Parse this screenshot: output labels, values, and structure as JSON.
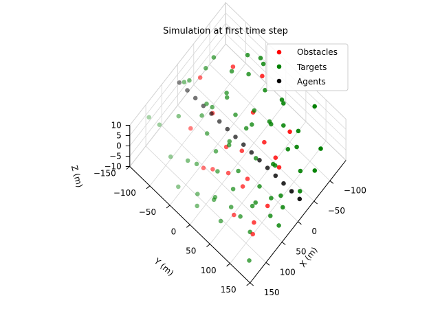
{
  "chart_data": {
    "type": "scatter",
    "projection": "3d",
    "title": "Simulation at first time step",
    "xlabel": "X (m)",
    "ylabel": "Y (m)",
    "zlabel": "Z (m)",
    "xlim": [
      -150,
      150
    ],
    "ylim": [
      -150,
      150
    ],
    "zlim": [
      -10,
      10
    ],
    "xticks": [
      "−100",
      "−50",
      "0",
      "50",
      "100",
      "150"
    ],
    "yticks": [
      "−150",
      "−100",
      "−50",
      "0",
      "50",
      "100",
      "150"
    ],
    "zticks": [
      "−10",
      "−5",
      "0",
      "5",
      "10"
    ],
    "grid": true,
    "legend": {
      "placement": "top-right",
      "entries": [
        {
          "name": "Obstacles",
          "color": "#ff0000"
        },
        {
          "name": "Targets",
          "color": "#008000"
        },
        {
          "name": "Agents",
          "color": "#000000"
        }
      ]
    },
    "series": [
      {
        "name": "Obstacles",
        "color": "#ff0000",
        "points": [
          [
            -120,
            -35,
            2
          ],
          [
            -85,
            -80,
            5
          ],
          [
            -60,
            -10,
            1
          ],
          [
            -45,
            30,
            -3
          ],
          [
            -30,
            70,
            0
          ],
          [
            -10,
            95,
            4
          ],
          [
            0,
            10,
            -2
          ],
          [
            10,
            -55,
            6
          ],
          [
            20,
            40,
            -6
          ],
          [
            30,
            -5,
            3
          ],
          [
            45,
            110,
            -1
          ],
          [
            60,
            60,
            2
          ],
          [
            70,
            -30,
            -4
          ],
          [
            85,
            5,
            5
          ],
          [
            100,
            70,
            -2
          ],
          [
            110,
            125,
            1
          ],
          [
            -100,
            50,
            -5
          ],
          [
            35,
            -90,
            -3
          ],
          [
            -20,
            -110,
            7
          ],
          [
            55,
            20,
            0
          ],
          [
            75,
            100,
            -5
          ]
        ]
      },
      {
        "name": "Targets",
        "color": "#008000",
        "points": [
          [
            -140,
            -55,
            3
          ],
          [
            -130,
            -40,
            5
          ],
          [
            -125,
            10,
            -2
          ],
          [
            -118,
            -70,
            6
          ],
          [
            -110,
            -20,
            0
          ],
          [
            -105,
            30,
            4
          ],
          [
            -100,
            -95,
            -3
          ],
          [
            -95,
            75,
            1
          ],
          [
            -90,
            -45,
            7
          ],
          [
            -85,
            15,
            -5
          ],
          [
            -80,
            50,
            2
          ],
          [
            -75,
            -120,
            4
          ],
          [
            -70,
            -15,
            -1
          ],
          [
            -65,
            95,
            3
          ],
          [
            -60,
            -75,
            -4
          ],
          [
            -55,
            35,
            6
          ],
          [
            -50,
            -5,
            -2
          ],
          [
            -45,
            120,
            0
          ],
          [
            -40,
            -60,
            5
          ],
          [
            -35,
            60,
            -6
          ],
          [
            -30,
            -30,
            2
          ],
          [
            -25,
            135,
            -3
          ],
          [
            -20,
            5,
            4
          ],
          [
            -15,
            -90,
            -1
          ],
          [
            -10,
            85,
            3
          ],
          [
            -5,
            -25,
            -5
          ],
          [
            0,
            45,
            1
          ],
          [
            5,
            -130,
            6
          ],
          [
            10,
            115,
            -2
          ],
          [
            15,
            -10,
            0
          ],
          [
            20,
            70,
            -4
          ],
          [
            25,
            -70,
            5
          ],
          [
            30,
            25,
            -3
          ],
          [
            35,
            140,
            2
          ],
          [
            40,
            -45,
            4
          ],
          [
            45,
            80,
            -5
          ],
          [
            50,
            -15,
            3
          ],
          [
            55,
            125,
            -1
          ],
          [
            60,
            -100,
            6
          ],
          [
            65,
            40,
            -2
          ],
          [
            70,
            5,
            1
          ],
          [
            75,
            -65,
            -6
          ],
          [
            80,
            100,
            4
          ],
          [
            85,
            -35,
            0
          ],
          [
            90,
            55,
            -3
          ],
          [
            95,
            -120,
            5
          ],
          [
            100,
            20,
            -4
          ],
          [
            105,
            90,
            2
          ],
          [
            110,
            -80,
            0
          ],
          [
            115,
            35,
            3
          ],
          [
            120,
            -5,
            -2
          ],
          [
            125,
            130,
            6
          ],
          [
            130,
            -45,
            -4
          ],
          [
            135,
            65,
            1
          ],
          [
            140,
            10,
            -1
          ],
          [
            -65,
            140,
            0
          ],
          [
            -115,
            115,
            -4
          ],
          [
            5,
            -60,
            7
          ],
          [
            -30,
            -145,
            -3
          ],
          [
            90,
            -150,
            2
          ],
          [
            140,
            140,
            -3
          ],
          [
            -140,
            80,
            5
          ],
          [
            -75,
            -140,
            -5
          ],
          [
            60,
            150,
            0
          ],
          [
            15,
            95,
            -6
          ],
          [
            -50,
            85,
            3
          ]
        ]
      },
      {
        "name": "Agents",
        "color": "#000000",
        "points": [
          [
            -5,
            -150,
            0
          ],
          [
            -5,
            -130,
            0
          ],
          [
            -5,
            -110,
            0
          ],
          [
            -5,
            -90,
            0
          ],
          [
            -5,
            -70,
            0
          ],
          [
            -5,
            -50,
            0
          ],
          [
            -5,
            -30,
            0
          ],
          [
            -5,
            -10,
            0
          ],
          [
            -5,
            10,
            0
          ],
          [
            -5,
            30,
            0
          ],
          [
            -5,
            50,
            0
          ],
          [
            -5,
            70,
            0
          ],
          [
            -5,
            90,
            0
          ],
          [
            -5,
            110,
            0
          ],
          [
            -5,
            130,
            0
          ],
          [
            -5,
            150,
            0
          ]
        ]
      }
    ]
  }
}
